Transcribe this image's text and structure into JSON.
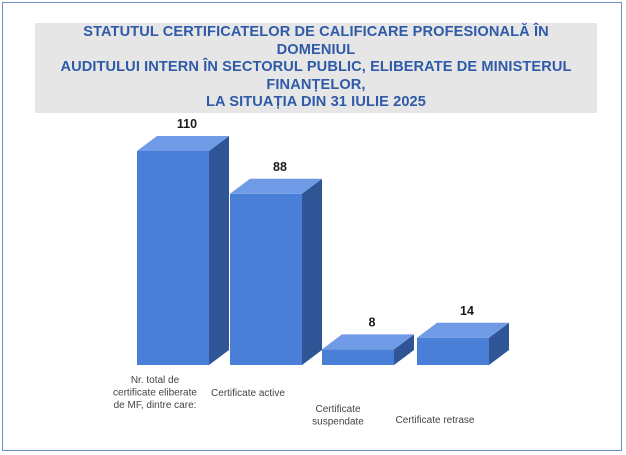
{
  "chart_data": {
    "type": "bar",
    "title": "STATUTUL CERTIFICATELOR DE CALIFICARE PROFESIONALĂ ÎN DOMENIUL\nAUDITULUI INTERN ÎN SECTORUL PUBLIC, ELIBERATE DE MINISTERUL FINANȚELOR,\nLA SITUAȚIA DIN 31 IULIE 2025",
    "categories": [
      "Nr. total de certificate eliberate de MF, dintre care:",
      "Certificate active",
      "Certificate suspendate",
      "Certificate retrase"
    ],
    "category_lines": [
      [
        "Nr. total de",
        "certificate eliberate",
        "de MF, dintre care:"
      ],
      [
        "Certificate active"
      ],
      [
        "Certificate",
        "suspendate"
      ],
      [
        "Certificate retrase"
      ]
    ],
    "values": [
      110,
      88,
      8,
      14
    ],
    "ylim": [
      0,
      110
    ],
    "xlabel": "",
    "ylabel": "",
    "grid": false,
    "legend": "none",
    "style": "3d-column",
    "colors": {
      "front": "#4a7fd8",
      "side": "#2f5597",
      "top": "#6f9be6",
      "title": "#2e5aa8",
      "title_bg": "#e7e6e6",
      "frame": "#6f8fc6"
    }
  }
}
